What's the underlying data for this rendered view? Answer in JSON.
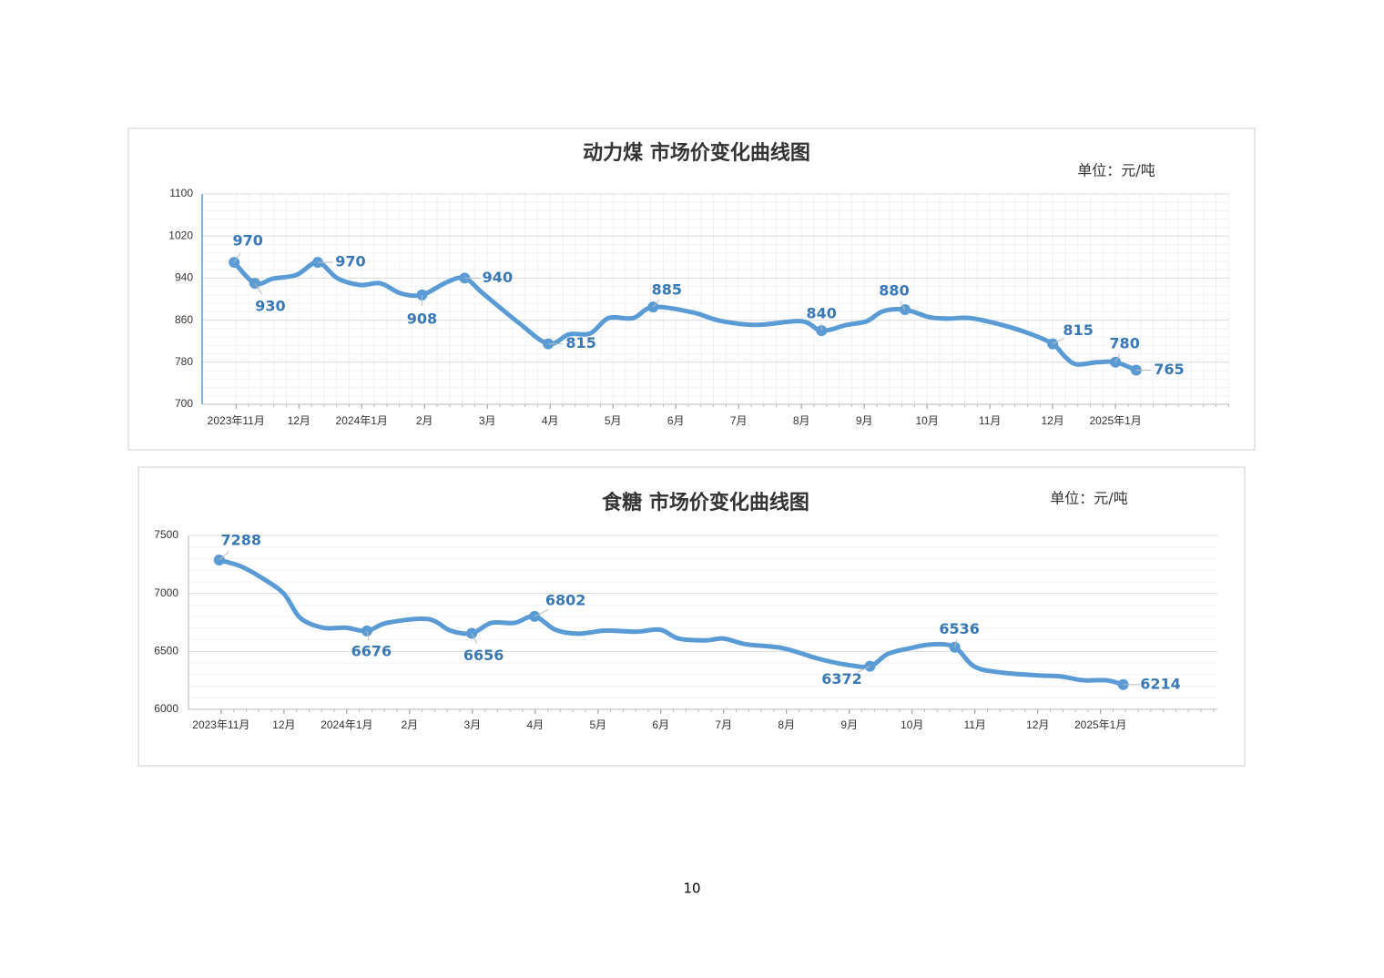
{
  "page_number": "10",
  "chart_data": [
    {
      "type": "line",
      "title": "动力煤  市场价变化曲线图",
      "unit": "单位：元/吨",
      "xlim": [
        -0.54,
        15.81
      ],
      "ylim": [
        700,
        1100
      ],
      "yticks": [
        700,
        780,
        860,
        940,
        1020,
        1100
      ],
      "xticks": [
        {
          "value": 0,
          "label": "2023年11月"
        },
        {
          "value": 1,
          "label": "12月"
        },
        {
          "value": 2,
          "label": "2024年1月"
        },
        {
          "value": 3,
          "label": "2月"
        },
        {
          "value": 4,
          "label": "3月"
        },
        {
          "value": 5,
          "label": "4月"
        },
        {
          "value": 6,
          "label": "5月"
        },
        {
          "value": 7,
          "label": "6月"
        },
        {
          "value": 8,
          "label": "7月"
        },
        {
          "value": 9,
          "label": "8月"
        },
        {
          "value": 10,
          "label": "9月"
        },
        {
          "value": 11,
          "label": "10月"
        },
        {
          "value": 12,
          "label": "11月"
        },
        {
          "value": 13,
          "label": "12月"
        },
        {
          "value": 14,
          "label": "2025年1月"
        }
      ],
      "grid": true,
      "minor_grid": "both",
      "color": "#5b9bd5",
      "x": [
        -0.03,
        0.3,
        0.59,
        0.96,
        1.3,
        1.61,
        1.97,
        2.3,
        2.62,
        2.96,
        3.35,
        3.64,
        3.93,
        4.51,
        4.97,
        5.3,
        5.64,
        5.93,
        6.32,
        6.64,
        7.26,
        7.7,
        8.28,
        9.0,
        9.32,
        9.72,
        10.04,
        10.3,
        10.65,
        11.03,
        11.32,
        11.68,
        12.19,
        12.62,
        13.0,
        13.2,
        13.38,
        13.71,
        14.0,
        14.33
      ],
      "values": [
        970,
        930,
        939,
        946,
        970,
        940,
        927,
        930,
        911,
        908,
        932,
        940,
        911,
        854,
        815,
        833,
        835,
        864,
        864,
        885,
        875,
        859,
        851,
        858,
        840,
        851,
        858,
        877,
        880,
        866,
        863,
        864,
        851,
        835,
        815,
        790,
        776,
        780,
        780,
        765
      ],
      "value_labels": [
        "970",
        "930",
        null,
        null,
        "970",
        null,
        null,
        null,
        null,
        "908",
        null,
        "940",
        null,
        null,
        "815",
        null,
        null,
        null,
        null,
        "885",
        null,
        null,
        null,
        null,
        "840",
        null,
        null,
        null,
        "880",
        null,
        null,
        null,
        null,
        null,
        "815",
        null,
        null,
        null,
        "780",
        "765"
      ]
    },
    {
      "type": "line",
      "title": "食糖  市场价变化曲线图",
      "unit": "单位：元/吨",
      "xlim": [
        -0.52,
        15.86
      ],
      "ylim": [
        6000,
        7500
      ],
      "yticks": [
        6000,
        6500,
        7000,
        7500
      ],
      "xticks": [
        {
          "value": 0,
          "label": "2023年11月"
        },
        {
          "value": 1,
          "label": "12月"
        },
        {
          "value": 2,
          "label": "2024年1月"
        },
        {
          "value": 3,
          "label": "2月"
        },
        {
          "value": 4,
          "label": "3月"
        },
        {
          "value": 5,
          "label": "4月"
        },
        {
          "value": 6,
          "label": "5月"
        },
        {
          "value": 7,
          "label": "6月"
        },
        {
          "value": 8,
          "label": "7月"
        },
        {
          "value": 9,
          "label": "8月"
        },
        {
          "value": 10,
          "label": "9月"
        },
        {
          "value": 11,
          "label": "10月"
        },
        {
          "value": 12,
          "label": "11月"
        },
        {
          "value": 13,
          "label": "12月"
        },
        {
          "value": 14,
          "label": "2025年1月"
        }
      ],
      "grid": true,
      "minor_grid": "y",
      "color": "#5b9bd5",
      "x": [
        -0.03,
        0.32,
        0.68,
        1.0,
        1.26,
        1.62,
        1.99,
        2.32,
        2.64,
        3.29,
        3.65,
        3.99,
        4.3,
        4.67,
        4.99,
        5.32,
        5.68,
        6.12,
        6.62,
        6.99,
        7.28,
        7.71,
        8.0,
        8.36,
        8.94,
        9.52,
        9.96,
        10.33,
        10.61,
        10.97,
        11.33,
        11.68,
        11.99,
        12.42,
        13.0,
        13.36,
        13.72,
        14.09,
        14.36
      ],
      "values": [
        7288,
        7232,
        7123,
        6997,
        6788,
        6704,
        6704,
        6676,
        6746,
        6779,
        6679,
        6656,
        6746,
        6746,
        6802,
        6687,
        6653,
        6679,
        6670,
        6687,
        6611,
        6595,
        6611,
        6561,
        6528,
        6435,
        6385,
        6372,
        6477,
        6528,
        6561,
        6536,
        6370,
        6318,
        6293,
        6285,
        6251,
        6251,
        6214
      ],
      "value_labels": [
        "7288",
        null,
        null,
        null,
        null,
        null,
        null,
        "6676",
        null,
        null,
        null,
        "6656",
        null,
        null,
        "6802",
        null,
        null,
        null,
        null,
        null,
        null,
        null,
        null,
        null,
        null,
        null,
        null,
        "6372",
        null,
        null,
        null,
        "6536",
        null,
        null,
        null,
        null,
        null,
        null,
        "6214"
      ]
    }
  ]
}
